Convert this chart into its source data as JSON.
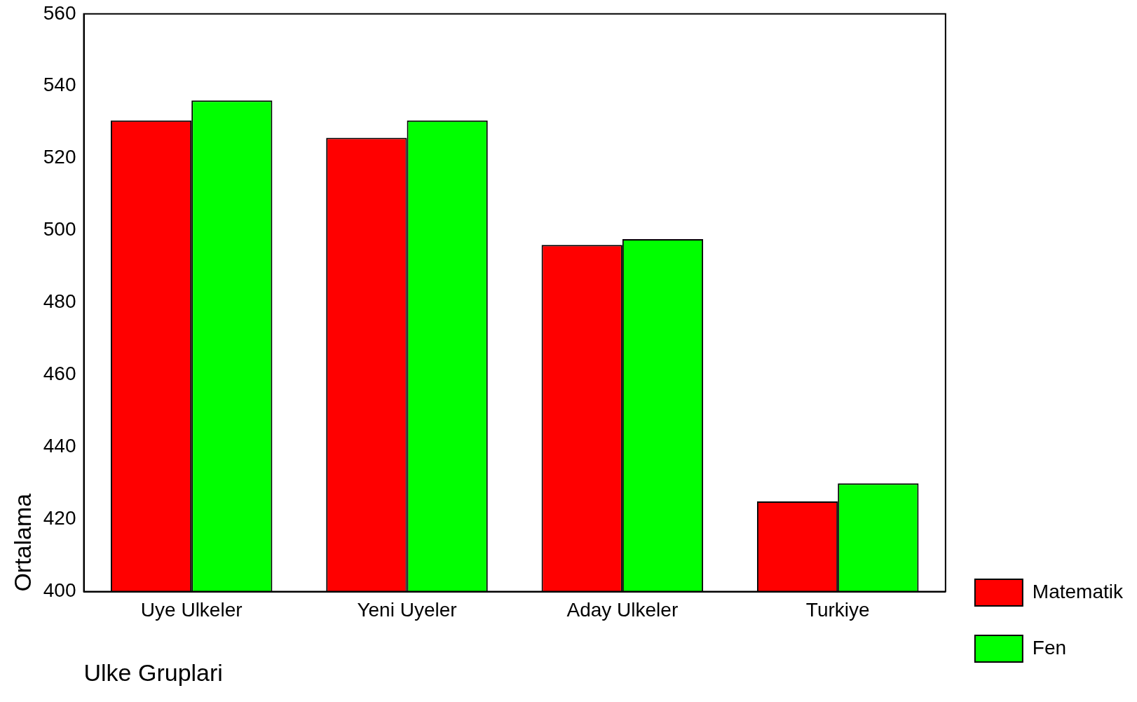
{
  "chart_data": {
    "type": "bar",
    "xlabel": "Ulke Gruplari",
    "ylabel": "Ortalama",
    "categories": [
      "Uye Ulkeler",
      "Yeni Uyeler",
      "Aday Ulkeler",
      "Turkiye"
    ],
    "series": [
      {
        "name": "Matematik",
        "color": "#ff0000",
        "values": [
          530.5,
          525.7,
          496,
          425
        ]
      },
      {
        "name": "Fen",
        "color": "#00ff00",
        "values": [
          536,
          530.5,
          497.6,
          430
        ]
      }
    ],
    "ylim": [
      400,
      560
    ],
    "yticks": [
      400,
      420,
      440,
      460,
      480,
      500,
      520,
      540,
      560
    ],
    "grid": false,
    "legend": "bottom right"
  }
}
